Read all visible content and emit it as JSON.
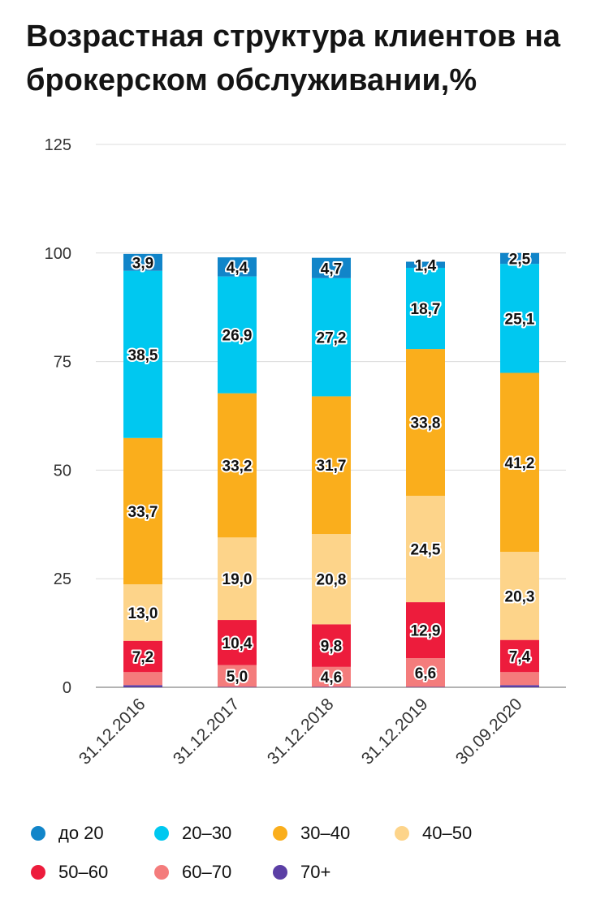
{
  "title": "Возрастная структура клиентов на брокерском обслуживании,%",
  "chart_data": {
    "type": "bar",
    "stacked": true,
    "title": "Возрастная структура клиентов на брокерском обслуживании,%",
    "categories": [
      "31.12.2016",
      "31.12.2017",
      "31.12.2018",
      "31.12.2019",
      "30.09.2020"
    ],
    "yticks": [
      "0",
      "25",
      "50",
      "75",
      "100",
      "125"
    ],
    "ylim": [
      0,
      125
    ],
    "grid": true,
    "legend_position": "bottom",
    "series": [
      {
        "name": "70+",
        "color": "#5b3fa5",
        "values": [
          0.5,
          0.1,
          0.1,
          0.1,
          0.5
        ],
        "labels": [
          "",
          "",
          "",
          "",
          ""
        ]
      },
      {
        "name": "60–70",
        "color": "#f47c7c",
        "values": [
          3.0,
          5.0,
          4.6,
          6.6,
          3.0
        ],
        "labels": [
          "",
          "5,0",
          "4,6",
          "6,6",
          ""
        ]
      },
      {
        "name": "50–60",
        "color": "#ed1c3c",
        "values": [
          7.2,
          10.4,
          9.8,
          12.9,
          7.4
        ],
        "labels": [
          "7,2",
          "10,4",
          "9,8",
          "12,9",
          "7,4"
        ]
      },
      {
        "name": "40–50",
        "color": "#fdd48a",
        "values": [
          13.0,
          19.0,
          20.8,
          24.5,
          20.3
        ],
        "labels": [
          "13,0",
          "19,0",
          "20,8",
          "24,5",
          "20,3"
        ]
      },
      {
        "name": "30–40",
        "color": "#faae1c",
        "values": [
          33.7,
          33.2,
          31.7,
          33.8,
          41.2
        ],
        "labels": [
          "33,7",
          "33,2",
          "31,7",
          "33,8",
          "41,2"
        ]
      },
      {
        "name": "20–30",
        "color": "#00c8f0",
        "values": [
          38.5,
          26.9,
          27.2,
          18.7,
          25.1
        ],
        "labels": [
          "38,5",
          "26,9",
          "27,2",
          "18,7",
          "25,1"
        ]
      },
      {
        "name": "до 20",
        "color": "#1185c9",
        "values": [
          3.9,
          4.4,
          4.7,
          1.4,
          2.5
        ],
        "labels": [
          "3,9",
          "4,4",
          "4,7",
          "1,4",
          "2,5"
        ]
      }
    ]
  },
  "legend": [
    {
      "label": "до 20",
      "color": "#1185c9"
    },
    {
      "label": "20–30",
      "color": "#00c8f0"
    },
    {
      "label": "30–40",
      "color": "#faae1c"
    },
    {
      "label": "40–50",
      "color": "#fdd48a"
    },
    {
      "label": "50–60",
      "color": "#ed1c3c"
    },
    {
      "label": "60–70",
      "color": "#f47c7c"
    },
    {
      "label": "70+",
      "color": "#5b3fa5"
    }
  ]
}
